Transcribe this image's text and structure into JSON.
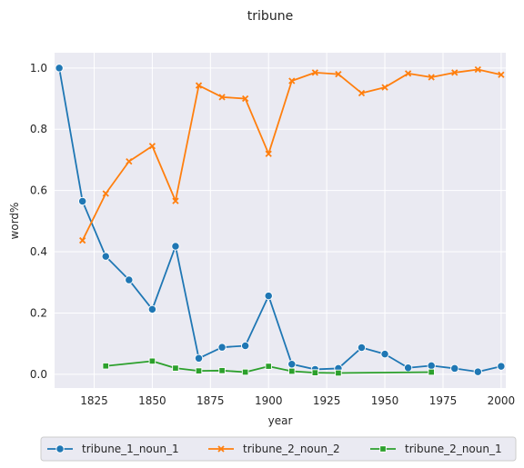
{
  "chart_data": {
    "type": "line",
    "title": "tribune",
    "xlabel": "year",
    "ylabel": "word%",
    "xlim": [
      1808,
      2002
    ],
    "ylim": [
      -0.045,
      1.05
    ],
    "xticks": [
      1825,
      1850,
      1875,
      1900,
      1925,
      1950,
      1975,
      2000
    ],
    "yticks": [
      0.0,
      0.2,
      0.4,
      0.6,
      0.8,
      1.0
    ],
    "grid": true,
    "legend_position": "bottom-outside",
    "series": [
      {
        "name": "tribune_1_noun_1",
        "color": "#1f77b4",
        "marker": "circle",
        "x": [
          1810,
          1820,
          1830,
          1840,
          1850,
          1860,
          1870,
          1880,
          1890,
          1900,
          1910,
          1920,
          1930,
          1940,
          1950,
          1960,
          1970,
          1980,
          1990,
          2000
        ],
        "y": [
          1.0,
          0.565,
          0.385,
          0.308,
          0.212,
          0.418,
          0.052,
          0.088,
          0.093,
          0.256,
          0.033,
          0.016,
          0.019,
          0.087,
          0.066,
          0.021,
          0.028,
          0.019,
          0.008,
          0.026
        ]
      },
      {
        "name": "tribune_2_noun_2",
        "color": "#ff7f0e",
        "marker": "x",
        "x": [
          1820,
          1830,
          1840,
          1850,
          1860,
          1870,
          1880,
          1890,
          1900,
          1910,
          1920,
          1930,
          1940,
          1950,
          1960,
          1970,
          1980,
          1990,
          2000
        ],
        "y": [
          0.437,
          0.59,
          0.695,
          0.745,
          0.566,
          0.943,
          0.905,
          0.9,
          0.72,
          0.958,
          0.985,
          0.98,
          0.918,
          0.937,
          0.982,
          0.97,
          0.985,
          0.995,
          0.978
        ]
      },
      {
        "name": "tribune_2_noun_1",
        "color": "#2ca02c",
        "marker": "square",
        "x": [
          1830,
          1850,
          1860,
          1870,
          1880,
          1890,
          1900,
          1910,
          1920,
          1930,
          1970
        ],
        "y": [
          0.027,
          0.043,
          0.02,
          0.011,
          0.012,
          0.007,
          0.026,
          0.01,
          0.005,
          0.004,
          0.007
        ]
      }
    ]
  }
}
